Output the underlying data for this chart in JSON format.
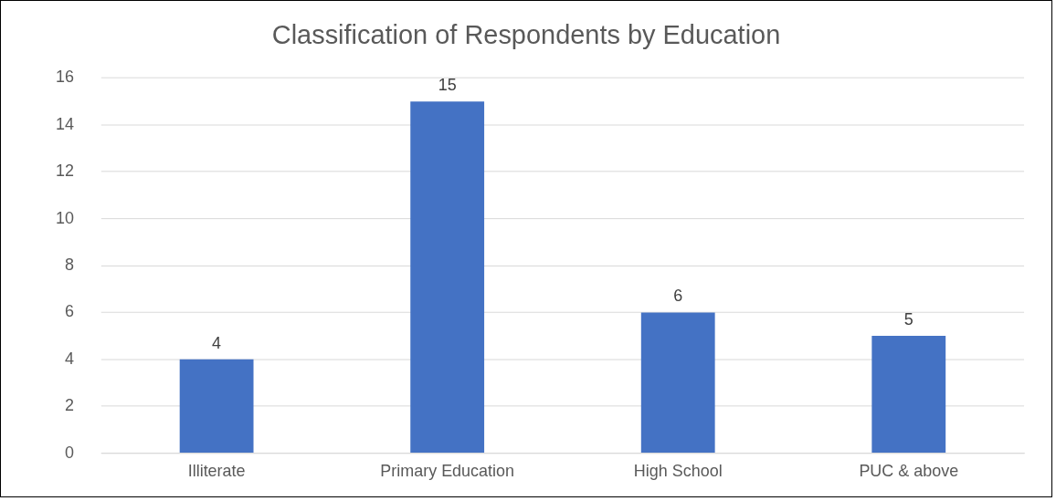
{
  "chart_data": {
    "type": "bar",
    "title": "Classification of Respondents by Education",
    "categories": [
      "Illiterate",
      "Primary Education",
      "High School",
      "PUC & above"
    ],
    "values": [
      4,
      15,
      6,
      5
    ],
    "color": "#4472c4",
    "ylim": [
      0,
      16
    ],
    "yticks": [
      0,
      2,
      4,
      6,
      8,
      10,
      12,
      14,
      16
    ],
    "grid": "y",
    "legend": false,
    "data_labels": true
  }
}
